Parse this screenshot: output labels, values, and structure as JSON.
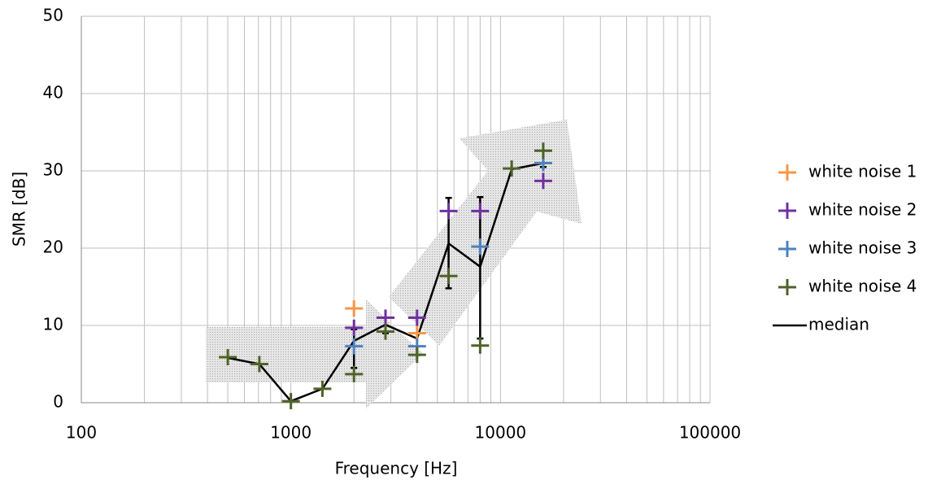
{
  "chart_data": {
    "type": "scatter",
    "x_label": "Frequency [Hz]",
    "y_label": "SMR [dB]",
    "xscale": "log",
    "xlim": [
      100,
      100000
    ],
    "xticks": [
      100,
      1000,
      10000,
      100000
    ],
    "ylim": [
      0,
      50
    ],
    "yticks": [
      0,
      10,
      20,
      30,
      40,
      50
    ],
    "grid": true,
    "x": [
      500,
      707,
      1000,
      1414,
      2000,
      2828,
      4000,
      5657,
      8000,
      11314,
      16000
    ],
    "series": [
      {
        "name": "white noise 1",
        "color": "#f79646",
        "values": [
          null,
          null,
          null,
          null,
          12.2,
          null,
          9.0,
          null,
          null,
          null,
          null
        ]
      },
      {
        "name": "white noise 2",
        "color": "#7030a0",
        "values": [
          null,
          null,
          null,
          null,
          9.7,
          11.0,
          11.0,
          24.8,
          24.8,
          null,
          28.7
        ]
      },
      {
        "name": "white noise 3",
        "color": "#4f81bd",
        "values": [
          null,
          null,
          null,
          null,
          7.3,
          null,
          7.3,
          null,
          20.2,
          null,
          31.0
        ]
      },
      {
        "name": "white noise 4",
        "color": "#4f6228",
        "values": [
          5.9,
          5.0,
          0.2,
          1.8,
          3.7,
          9.2,
          6.2,
          16.4,
          7.4,
          30.3,
          32.6
        ]
      }
    ],
    "median": {
      "name": "median",
      "color": "#000000",
      "values": [
        5.8,
        5.0,
        0.2,
        1.8,
        8.0,
        10.1,
        8.3,
        20.6,
        17.6,
        30.2,
        31.0
      ],
      "error_low": [
        null,
        null,
        null,
        null,
        3.5,
        1.1,
        null,
        5.8,
        9.3,
        null,
        0.5
      ],
      "error_high": [
        null,
        null,
        null,
        null,
        1.5,
        0.9,
        null,
        5.9,
        9.0,
        null,
        1.6
      ]
    },
    "legend": "right"
  }
}
